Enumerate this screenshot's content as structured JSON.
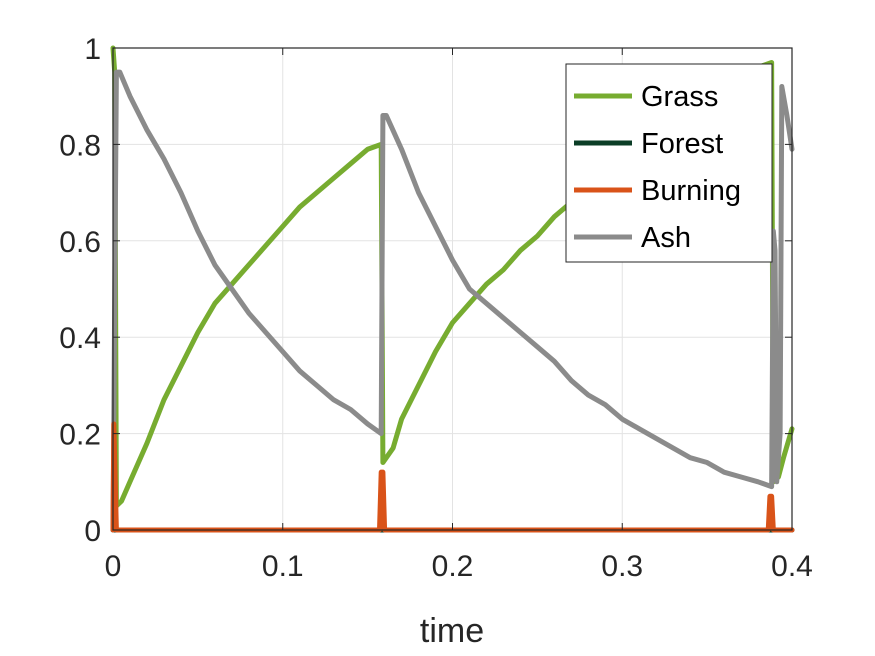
{
  "chart_data": {
    "type": "line",
    "title": "",
    "xlabel": "time",
    "ylabel": "",
    "xlim": [
      0,
      0.4
    ],
    "ylim": [
      0,
      1
    ],
    "xticks": [
      "0",
      "0.1",
      "0.2",
      "0.3",
      "0.4"
    ],
    "yticks": [
      "0",
      "0.2",
      "0.4",
      "0.6",
      "0.8",
      "1"
    ],
    "grid": true,
    "legend_position": "top-right",
    "series": [
      {
        "name": "Grass",
        "color": "#77ac30",
        "points": [
          [
            0,
            1.0
          ],
          [
            0.001,
            0.95
          ],
          [
            0.002,
            0.05
          ],
          [
            0.005,
            0.06
          ],
          [
            0.01,
            0.1
          ],
          [
            0.02,
            0.18
          ],
          [
            0.03,
            0.27
          ],
          [
            0.04,
            0.34
          ],
          [
            0.05,
            0.41
          ],
          [
            0.06,
            0.47
          ],
          [
            0.07,
            0.51
          ],
          [
            0.08,
            0.55
          ],
          [
            0.09,
            0.59
          ],
          [
            0.1,
            0.63
          ],
          [
            0.11,
            0.67
          ],
          [
            0.12,
            0.7
          ],
          [
            0.13,
            0.73
          ],
          [
            0.14,
            0.76
          ],
          [
            0.15,
            0.79
          ],
          [
            0.158,
            0.8
          ],
          [
            0.159,
            0.14
          ],
          [
            0.165,
            0.17
          ],
          [
            0.17,
            0.23
          ],
          [
            0.18,
            0.3
          ],
          [
            0.19,
            0.37
          ],
          [
            0.2,
            0.43
          ],
          [
            0.21,
            0.47
          ],
          [
            0.22,
            0.51
          ],
          [
            0.23,
            0.54
          ],
          [
            0.24,
            0.58
          ],
          [
            0.25,
            0.61
          ],
          [
            0.26,
            0.65
          ],
          [
            0.27,
            0.68
          ],
          [
            0.28,
            0.71
          ],
          [
            0.29,
            0.74
          ],
          [
            0.3,
            0.77
          ],
          [
            0.31,
            0.8
          ],
          [
            0.32,
            0.83
          ],
          [
            0.33,
            0.85
          ],
          [
            0.34,
            0.87
          ],
          [
            0.35,
            0.9
          ],
          [
            0.36,
            0.92
          ],
          [
            0.37,
            0.94
          ],
          [
            0.38,
            0.96
          ],
          [
            0.388,
            0.97
          ],
          [
            0.389,
            0.1
          ],
          [
            0.392,
            0.11
          ],
          [
            0.395,
            0.15
          ],
          [
            0.4,
            0.21
          ]
        ]
      },
      {
        "name": "Forest",
        "color": "#0b3d26",
        "points": [
          [
            0,
            0.0
          ],
          [
            0.4,
            0.0
          ]
        ]
      },
      {
        "name": "Burning",
        "color": "#d95319",
        "points": [
          [
            0,
            0.0
          ],
          [
            0.0005,
            0.22
          ],
          [
            0.002,
            0.0
          ],
          [
            0.157,
            0.0
          ],
          [
            0.158,
            0.12
          ],
          [
            0.159,
            0.12
          ],
          [
            0.16,
            0.0
          ],
          [
            0.386,
            0.0
          ],
          [
            0.387,
            0.07
          ],
          [
            0.388,
            0.07
          ],
          [
            0.389,
            0.0
          ],
          [
            0.4,
            0.0
          ]
        ]
      },
      {
        "name": "Ash",
        "color": "#8b8b8b",
        "points": [
          [
            0,
            0.0
          ],
          [
            0.002,
            0.95
          ],
          [
            0.004,
            0.95
          ],
          [
            0.01,
            0.9
          ],
          [
            0.02,
            0.83
          ],
          [
            0.03,
            0.77
          ],
          [
            0.04,
            0.7
          ],
          [
            0.05,
            0.62
          ],
          [
            0.06,
            0.55
          ],
          [
            0.07,
            0.5
          ],
          [
            0.08,
            0.45
          ],
          [
            0.09,
            0.41
          ],
          [
            0.1,
            0.37
          ],
          [
            0.11,
            0.33
          ],
          [
            0.12,
            0.3
          ],
          [
            0.13,
            0.27
          ],
          [
            0.14,
            0.25
          ],
          [
            0.15,
            0.22
          ],
          [
            0.158,
            0.2
          ],
          [
            0.159,
            0.86
          ],
          [
            0.161,
            0.86
          ],
          [
            0.17,
            0.79
          ],
          [
            0.18,
            0.7
          ],
          [
            0.19,
            0.63
          ],
          [
            0.2,
            0.56
          ],
          [
            0.21,
            0.5
          ],
          [
            0.22,
            0.47
          ],
          [
            0.23,
            0.44
          ],
          [
            0.24,
            0.41
          ],
          [
            0.25,
            0.38
          ],
          [
            0.26,
            0.35
          ],
          [
            0.27,
            0.31
          ],
          [
            0.28,
            0.28
          ],
          [
            0.29,
            0.26
          ],
          [
            0.3,
            0.23
          ],
          [
            0.31,
            0.21
          ],
          [
            0.32,
            0.19
          ],
          [
            0.33,
            0.17
          ],
          [
            0.34,
            0.15
          ],
          [
            0.35,
            0.14
          ],
          [
            0.36,
            0.12
          ],
          [
            0.37,
            0.11
          ],
          [
            0.38,
            0.1
          ],
          [
            0.388,
            0.09
          ],
          [
            0.389,
            0.62
          ],
          [
            0.39,
            0.58
          ],
          [
            0.391,
            0.1
          ],
          [
            0.393,
            0.2
          ],
          [
            0.394,
            0.92
          ],
          [
            0.397,
            0.86
          ],
          [
            0.4,
            0.79
          ]
        ]
      }
    ]
  }
}
